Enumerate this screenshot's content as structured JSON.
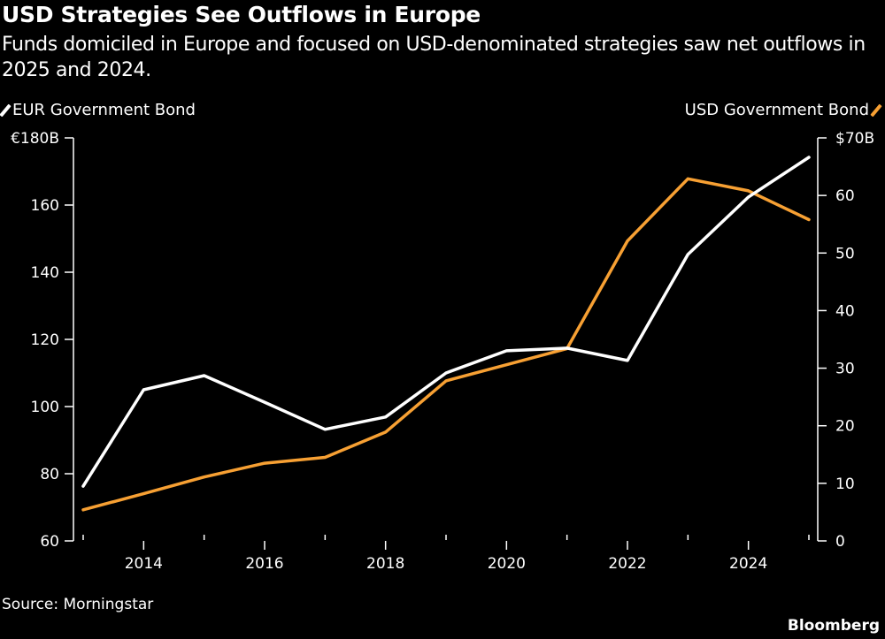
{
  "header": {
    "title": "USD Strategies See Outflows in Europe",
    "subtitle": "Funds domiciled in Europe and focused on USD-denominated strategies saw net outflows in 2025 and 2024."
  },
  "footer": {
    "source": "Source: Morningstar",
    "brand": "Bloomberg"
  },
  "colors": {
    "background": "#000000",
    "eur_line": "#ffffff",
    "usd_line": "#f7a033",
    "axis": "#ffffff"
  },
  "chart_data": {
    "type": "line",
    "title": "USD Strategies See Outflows in Europe",
    "subtitle": "Funds domiciled in Europe and focused on USD-denominated strategies saw net outflows in 2025 and 2024.",
    "x": [
      2013,
      2014,
      2015,
      2016,
      2017,
      2018,
      2019,
      2020,
      2021,
      2022,
      2023,
      2024,
      2025
    ],
    "x_tick_labels": [
      "2014",
      "2016",
      "2018",
      "2020",
      "2022",
      "2024"
    ],
    "x_ticks_major": [
      2014,
      2016,
      2018,
      2020,
      2022,
      2024
    ],
    "x_ticks_minor": [
      2013,
      2015,
      2017,
      2019,
      2021,
      2023,
      2025
    ],
    "series": [
      {
        "name": "EUR Government Bond",
        "axis": "left",
        "color": "#ffffff",
        "values": [
          76.3,
          105.0,
          109.2,
          101.3,
          93.2,
          96.9,
          110.0,
          116.6,
          117.4,
          113.7,
          145.3,
          162.4,
          174.2
        ]
      },
      {
        "name": "USD Government Bond",
        "axis": "right",
        "color": "#f7a033",
        "values": [
          5.4,
          8.2,
          11.1,
          13.5,
          14.5,
          18.9,
          27.8,
          30.6,
          33.4,
          52.1,
          62.9,
          60.8,
          55.8
        ]
      }
    ],
    "left_axis": {
      "ylim": [
        60,
        180
      ],
      "ticks": [
        60,
        80,
        100,
        120,
        140,
        160,
        180
      ],
      "tick_labels": [
        "60",
        "80",
        "100",
        "120",
        "140",
        "160",
        "€180B"
      ]
    },
    "right_axis": {
      "ylim": [
        0,
        70
      ],
      "ticks": [
        0,
        10,
        20,
        30,
        40,
        50,
        60,
        70
      ],
      "tick_labels": [
        "0",
        "10",
        "20",
        "30",
        "40",
        "50",
        "60",
        "$70B"
      ]
    },
    "xlabel": "",
    "ylabel_left": "",
    "ylabel_right": "",
    "grid": false,
    "legend": [
      {
        "label": "EUR Government Bond",
        "placement": "top-left"
      },
      {
        "label": "USD Government Bond",
        "placement": "top-right"
      }
    ],
    "source": "Source: Morningstar"
  }
}
